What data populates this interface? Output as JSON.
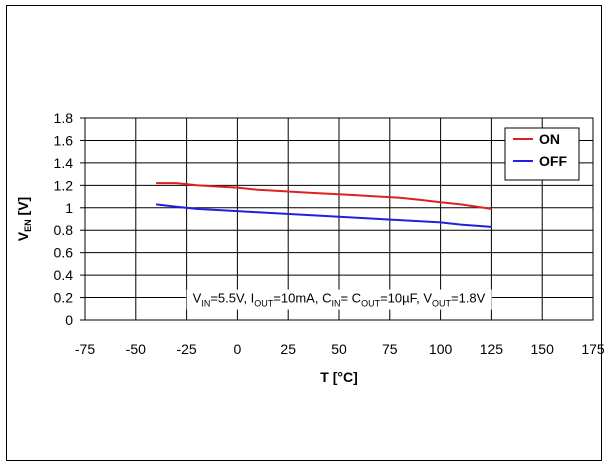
{
  "chart_data": {
    "type": "line",
    "xlabel": "T [°C]",
    "ylabel_main": "V",
    "ylabel_sub": "EN",
    "ylabel_unit": " [V]",
    "xlim": [
      -75,
      175
    ],
    "ylim": [
      0,
      1.8
    ],
    "xticks": [
      "-75",
      "-50",
      "-25",
      "0",
      "25",
      "50",
      "75",
      "100",
      "125",
      "150",
      "175"
    ],
    "yticks": [
      "0",
      "0.2",
      "0.4",
      "0.6",
      "0.8",
      "1",
      "1.2",
      "1.4",
      "1.6",
      "1.8"
    ],
    "grid": true,
    "legend_position": "top-right",
    "series": [
      {
        "name": "ON",
        "color": "#e02020",
        "x": [
          -40,
          -30,
          -20,
          -10,
          0,
          10,
          20,
          30,
          40,
          50,
          60,
          70,
          80,
          90,
          100,
          110,
          125
        ],
        "y": [
          1.22,
          1.22,
          1.2,
          1.19,
          1.18,
          1.16,
          1.15,
          1.14,
          1.13,
          1.12,
          1.11,
          1.1,
          1.09,
          1.07,
          1.05,
          1.03,
          0.99
        ]
      },
      {
        "name": "OFF",
        "color": "#2020e0",
        "x": [
          -40,
          -30,
          -20,
          -10,
          0,
          10,
          20,
          30,
          40,
          50,
          60,
          70,
          80,
          90,
          100,
          110,
          125
        ],
        "y": [
          1.03,
          1.01,
          0.99,
          0.98,
          0.97,
          0.96,
          0.95,
          0.94,
          0.93,
          0.92,
          0.91,
          0.9,
          0.89,
          0.88,
          0.87,
          0.85,
          0.83
        ]
      }
    ],
    "annotation": [
      {
        "t": "V",
        "sub": false
      },
      {
        "t": "IN",
        "sub": true
      },
      {
        "t": "=5.5V, I",
        "sub": false
      },
      {
        "t": "OUT",
        "sub": true
      },
      {
        "t": "=10mA, C",
        "sub": false
      },
      {
        "t": "IN",
        "sub": true
      },
      {
        "t": "= C",
        "sub": false
      },
      {
        "t": "OUT",
        "sub": true
      },
      {
        "t": "=10µF, V",
        "sub": false
      },
      {
        "t": "OUT",
        "sub": true
      },
      {
        "t": "=1.8V",
        "sub": false
      }
    ]
  }
}
